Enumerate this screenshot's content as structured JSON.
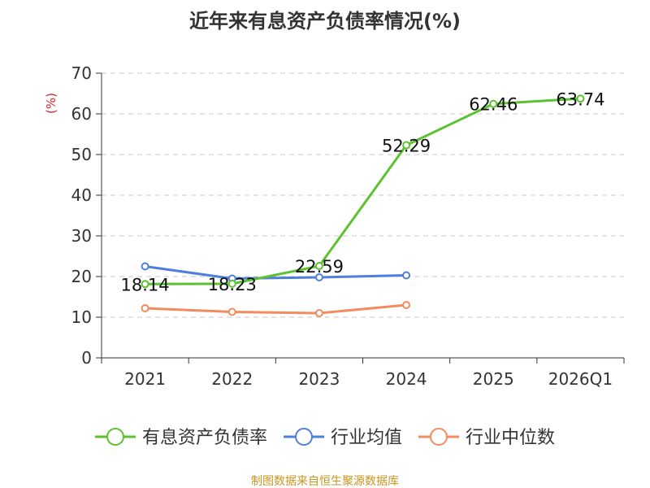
{
  "chart_data": {
    "type": "line",
    "title": "近年来有息资产负债率情况(%)",
    "ylabel": "(%)",
    "xlabel": "",
    "categories": [
      "2021",
      "2022",
      "2023",
      "2024",
      "2025",
      "2026Q1"
    ],
    "ylim": [
      0,
      70
    ],
    "yticks": [
      0,
      10,
      20,
      30,
      40,
      50,
      60,
      70
    ],
    "grid": true,
    "legend_position": "bottom",
    "series": [
      {
        "name": "有息资产负债率",
        "color": "#5cc230",
        "values": [
          18.14,
          18.23,
          22.59,
          52.29,
          62.46,
          63.74
        ],
        "labels": [
          "18.14",
          "18.23",
          "22.59",
          "52.29",
          "62.46",
          "63.74"
        ]
      },
      {
        "name": "行业均值",
        "color": "#4f7fdc",
        "values": [
          22.5,
          19.5,
          19.8,
          20.3,
          null,
          null
        ]
      },
      {
        "name": "行业中位数",
        "color": "#f28b5e",
        "values": [
          12.2,
          11.3,
          11.0,
          13.0,
          null,
          null
        ]
      }
    ]
  },
  "source": "制图数据来自恒生聚源数据库",
  "colors": {
    "title": "#333333",
    "axis": "#333333",
    "ylabel": "#d9262b",
    "grid": "#c8c8c8",
    "source": "#c8961e"
  }
}
